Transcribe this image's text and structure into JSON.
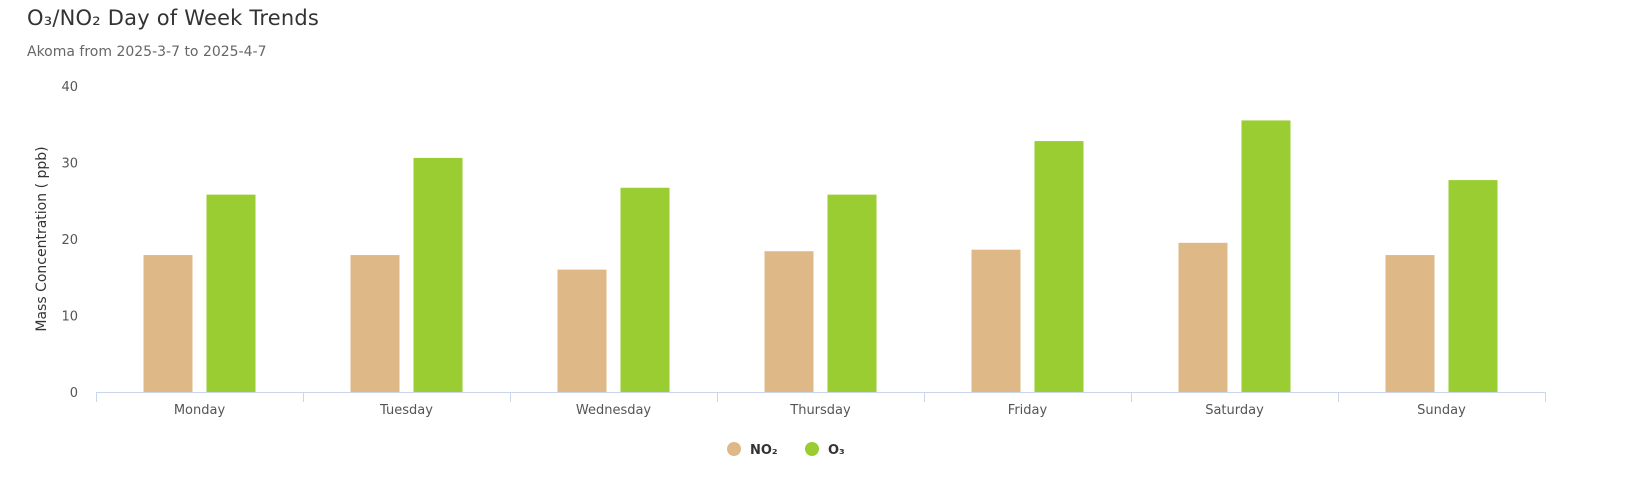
{
  "title": "O₃/NO₂ Day of Week Trends",
  "subtitle": "Akoma from 2025-3-7 to 2025-4-7",
  "colors": {
    "no2": "#DEB887",
    "o3": "#9ACD32",
    "axis": "#CCD6EB"
  },
  "chart_data": {
    "type": "bar",
    "title": "O₃/NO₂ Day of Week Trends",
    "subtitle": "Akoma from 2025-3-7 to 2025-4-7",
    "xlabel": "",
    "ylabel": "Mass Concentration ( ppb)",
    "ylim": [
      0,
      40
    ],
    "yticks": [
      0,
      10,
      20,
      30,
      40
    ],
    "grid": false,
    "legend": "bottom-center",
    "categories": [
      "Monday",
      "Tuesday",
      "Wednesday",
      "Thursday",
      "Friday",
      "Saturday",
      "Sunday"
    ],
    "series": [
      {
        "name": "NO₂",
        "color": "#DEB887",
        "values": [
          17.9,
          17.9,
          16.0,
          18.4,
          18.6,
          19.5,
          17.9
        ]
      },
      {
        "name": "O₃",
        "color": "#9ACD32",
        "values": [
          25.8,
          30.6,
          26.7,
          25.8,
          32.8,
          35.5,
          27.7
        ]
      }
    ]
  }
}
